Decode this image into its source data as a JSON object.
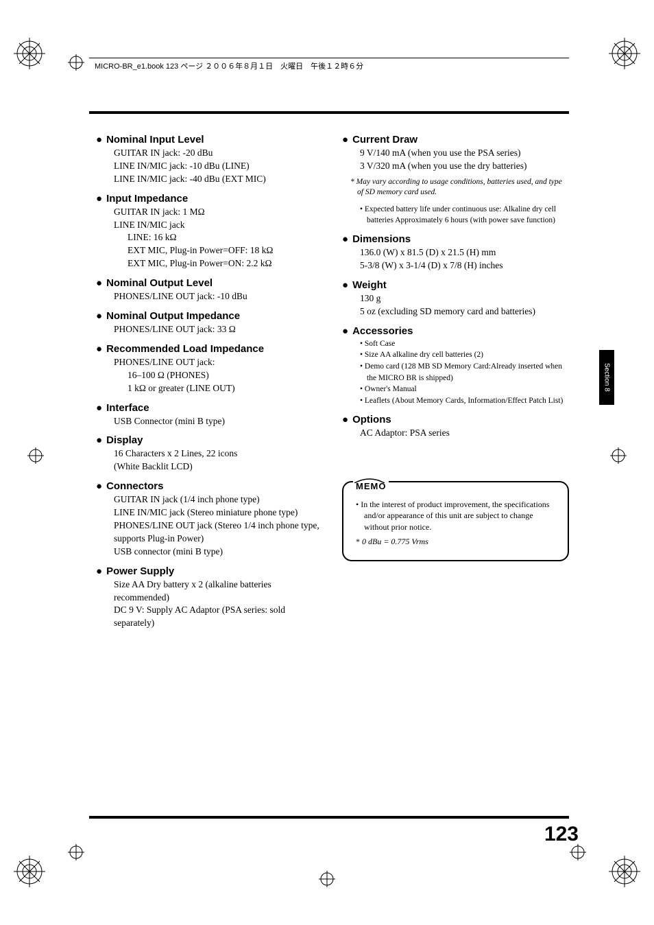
{
  "header": {
    "text": "MICRO-BR_e1.book 123 ページ ２００６年８月１日　火曜日　午後１２時６分"
  },
  "side_tab": "Section 8",
  "page_number": "123",
  "left_col": [
    {
      "title": "Nominal Input Level",
      "lines": [
        "GUITAR IN jack: -20 dBu",
        "LINE IN/MIC jack: -10 dBu (LINE)",
        "LINE IN/MIC jack: -40 dBu (EXT MIC)"
      ]
    },
    {
      "title": "Input Impedance",
      "lines": [
        "GUITAR IN jack: 1 MΩ",
        "LINE IN/MIC jack"
      ],
      "indent_lines": [
        "LINE: 16 kΩ",
        "EXT MIC, Plug-in Power=OFF: 18 kΩ",
        "EXT MIC, Plug-in Power=ON: 2.2 kΩ"
      ]
    },
    {
      "title": "Nominal Output Level",
      "lines": [
        "PHONES/LINE OUT jack: -10 dBu"
      ]
    },
    {
      "title": "Nominal Output Impedance",
      "lines": [
        "PHONES/LINE OUT jack: 33 Ω"
      ]
    },
    {
      "title": "Recommended Load Impedance",
      "lines": [
        "PHONES/LINE OUT jack:"
      ],
      "indent_lines": [
        "16–100 Ω (PHONES)",
        "1 kΩ or greater (LINE OUT)"
      ]
    },
    {
      "title": "Interface",
      "lines": [
        "USB Connector (mini B type)"
      ]
    },
    {
      "title": "Display",
      "lines": [
        "16 Characters x 2 Lines, 22 icons",
        "(White Backlit LCD)"
      ]
    },
    {
      "title": "Connectors",
      "lines": [
        "GUITAR IN jack (1/4 inch phone type)",
        "LINE IN/MIC jack (Stereo miniature phone type)",
        "PHONES/LINE OUT jack (Stereo 1/4 inch phone type, supports Plug-in Power)",
        "USB connector (mini B type)"
      ]
    },
    {
      "title": "Power Supply",
      "lines": [
        "Size AA Dry battery x 2 (alkaline batteries recommended)",
        "DC 9 V: Supply AC Adaptor (PSA series: sold separately)"
      ]
    }
  ],
  "right_col": [
    {
      "title": "Current Draw",
      "lines": [
        "9 V/140 mA (when you use the PSA series)",
        "3 V/320 mA (when you use the dry batteries)"
      ],
      "note": "*  May vary according to usage conditions, batteries used, and type of SD memory card used.",
      "bullets": [
        "Expected battery life under continuous use: Alkaline dry cell batteries Approximately 6 hours (with power save function)"
      ]
    },
    {
      "title": "Dimensions",
      "lines": [
        "136.0 (W) x 81.5 (D) x 21.5 (H) mm",
        "5-3/8 (W) x 3-1/4 (D) x 7/8 (H) inches"
      ]
    },
    {
      "title": "Weight",
      "lines": [
        "130 g",
        "5 oz (excluding SD memory card and batteries)"
      ]
    },
    {
      "title": "Accessories",
      "bullets": [
        "Soft Case",
        "Size AA alkaline dry cell batteries (2)",
        "Demo card (128 MB SD Memory Card:Already inserted when the MICRO BR is shipped)",
        "Owner's Manual",
        "Leaflets (About Memory Cards, Information/Effect Patch List)"
      ]
    },
    {
      "title": "Options",
      "lines": [
        "AC Adaptor: PSA series"
      ]
    }
  ],
  "memo": {
    "label": "MEMO",
    "items": [
      {
        "type": "b",
        "text": "In the interest of product improvement, the specifications and/or appearance of this unit are subject to change without prior notice."
      },
      {
        "type": "s",
        "text": "0 dBu = 0.775 Vrms"
      }
    ]
  }
}
